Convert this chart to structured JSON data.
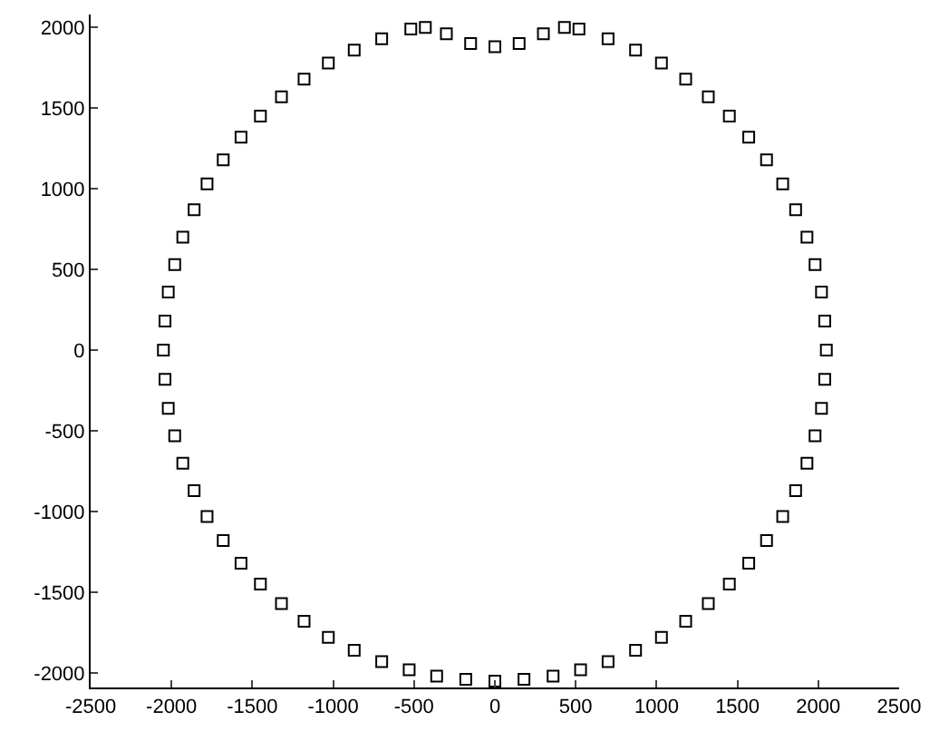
{
  "chart_data": {
    "type": "scatter",
    "marker": "square",
    "xlim": [
      -2500,
      2500
    ],
    "xticks": [
      -2500,
      -2000,
      -1500,
      -1000,
      -500,
      0,
      500,
      1000,
      1500,
      2000,
      2500
    ],
    "ylim": [
      -2090,
      2080
    ],
    "yticks": [
      -2000,
      -1500,
      -1000,
      -500,
      0,
      500,
      1000,
      1500,
      2000
    ],
    "series": [
      {
        "color": "#000000",
        "x": [
          2050,
          2040,
          2020,
          1980,
          1930,
          1860,
          1780,
          1680,
          1570,
          1450,
          1320,
          1180,
          1030,
          870,
          700,
          520,
          430,
          300,
          150,
          0,
          -150,
          -300,
          -430,
          -520,
          -700,
          -870,
          -1030,
          -1180,
          -1320,
          -1450,
          -1570,
          -1680,
          -1780,
          -1860,
          -1930,
          -1980,
          -2020,
          -2040,
          -2050,
          -2040,
          -2020,
          -1980,
          -1930,
          -1860,
          -1780,
          -1680,
          -1570,
          -1450,
          -1320,
          -1180,
          -1030,
          -870,
          -700,
          -530,
          -360,
          -180,
          0,
          180,
          360,
          530,
          700,
          870,
          1030,
          1180,
          1320,
          1450,
          1570,
          1680,
          1780,
          1860,
          1930,
          1980,
          2020,
          2040
        ],
        "values": [
          0,
          180,
          360,
          530,
          700,
          870,
          1030,
          1180,
          1320,
          1450,
          1570,
          1680,
          1780,
          1860,
          1930,
          1990,
          2000,
          1960,
          1900,
          1880,
          1900,
          1960,
          2000,
          1990,
          1930,
          1860,
          1780,
          1680,
          1570,
          1450,
          1320,
          1180,
          1030,
          870,
          700,
          530,
          360,
          180,
          0,
          -180,
          -360,
          -530,
          -700,
          -870,
          -1030,
          -1180,
          -1320,
          -1450,
          -1570,
          -1680,
          -1780,
          -1860,
          -1930,
          -1980,
          -2020,
          -2040,
          -2050,
          -2040,
          -2020,
          -1980,
          -1930,
          -1860,
          -1780,
          -1680,
          -1570,
          -1450,
          -1320,
          -1180,
          -1030,
          -870,
          -700,
          -530,
          -360,
          -180
        ]
      }
    ]
  }
}
